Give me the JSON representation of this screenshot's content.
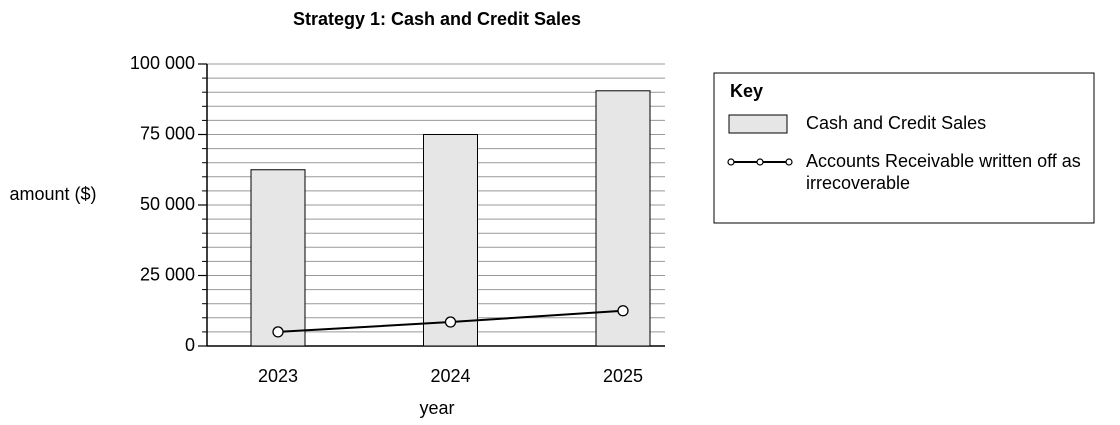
{
  "chart_data": {
    "type": "bar",
    "title": "Strategy 1: Cash and Credit Sales",
    "x_label": "year",
    "y_label": "amount ($)",
    "legend_title": "Key",
    "legend": "upper right",
    "categories": [
      "2023",
      "2024",
      "2025"
    ],
    "series": [
      {
        "name": "Cash and Credit Sales",
        "type": "bar",
        "color": "#e6e6e6",
        "values": [
          62500,
          75000,
          90500
        ]
      },
      {
        "name": "Accounts Receivable written off as irrecoverable",
        "type": "line",
        "color": "#000000",
        "values": [
          5000,
          8500,
          12500
        ]
      }
    ],
    "ylim": [
      0,
      100000
    ],
    "yticks": [
      0,
      {
        "value": 25000,
        "label": "25 000"
      },
      {
        "value": 50000,
        "label": "50 000"
      },
      {
        "value": 75000,
        "label": "75 000"
      },
      {
        "value": 100000,
        "label": "100 000"
      }
    ],
    "minor_yticks": [
      5000,
      10000,
      15000,
      20000,
      30000,
      35000,
      40000,
      45000,
      55000,
      60000,
      65000,
      70000,
      80000,
      85000,
      90000,
      95000
    ],
    "grid": true
  }
}
